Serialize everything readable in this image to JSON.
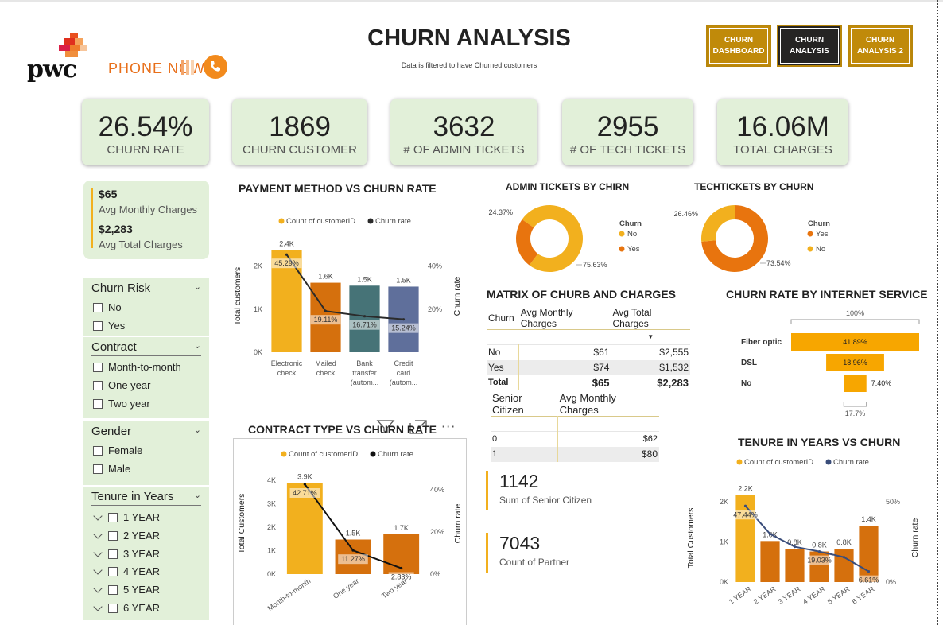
{
  "colors": {
    "gold": "#f2b01e",
    "orange": "#d5700d",
    "teal": "#467377",
    "slate": "#5f6f9b",
    "kpi_bg": "#e2f0d9",
    "nav_gold": "#c08a0a",
    "nav_dark": "#252423"
  },
  "branding": {
    "pwc": "pwc",
    "phone": "PHONE NOW"
  },
  "header": {
    "title": "CHURN ANALYSIS",
    "subtitle": "Data is filtered to have Churned customers"
  },
  "nav": [
    {
      "line1": "CHURN",
      "line2": "DASHBOARD",
      "active": false
    },
    {
      "line1": "CHURN",
      "line2": "ANALYSIS",
      "active": true
    },
    {
      "line1": "CHURN",
      "line2": "ANALYSIS 2",
      "active": false
    }
  ],
  "kpis": [
    {
      "value": "26.54%",
      "label": "CHURN RATE"
    },
    {
      "value": "1869",
      "label": "CHURN CUSTOMER"
    },
    {
      "value": "3632",
      "label": "# OF ADMIN TICKETS"
    },
    {
      "value": "2955",
      "label": "# OF TECH TICKETS"
    },
    {
      "value": "16.06M",
      "label": "TOTAL CHARGES"
    }
  ],
  "avg_card": {
    "v1": "$65",
    "l1": "Avg Monthly Charges",
    "v2": "$2,283",
    "l2": "Avg Total Charges"
  },
  "slicers": {
    "churn_risk": {
      "title": "Churn Risk",
      "options": [
        "No",
        "Yes"
      ]
    },
    "contract": {
      "title": "Contract",
      "options": [
        "Month-to-month",
        "One year",
        "Two year"
      ]
    },
    "gender": {
      "title": "Gender",
      "options": [
        "Female",
        "Male"
      ]
    },
    "tenure": {
      "title": "Tenure in Years",
      "options": [
        "1 YEAR",
        "2 YEAR",
        "3 YEAR",
        "4 YEAR",
        "5 YEAR",
        "6 YEAR"
      ]
    }
  },
  "matrix": {
    "title": "MATRIX OF CHURB AND CHARGES",
    "headers": [
      "Churn",
      "Avg Monthly Charges",
      "Avg Total Charges"
    ],
    "rows": [
      {
        "c": "No",
        "m": "$61",
        "t": "$2,555"
      },
      {
        "c": "Yes",
        "m": "$74",
        "t": "$1,532"
      },
      {
        "c": "Total",
        "m": "$65",
        "t": "$2,283"
      }
    ]
  },
  "senior_table": {
    "headers": [
      "Senior Citizen",
      "Avg Monthly Charges"
    ],
    "rows": [
      {
        "s": "0",
        "m": "$62"
      },
      {
        "s": "1",
        "m": "$80"
      }
    ]
  },
  "stats": [
    {
      "value": "1142",
      "label": "Sum of Senior Citizen"
    },
    {
      "value": "7043",
      "label": "Count of Partner"
    }
  ],
  "chart_data": [
    {
      "id": "payment",
      "type": "bar",
      "title": "PAYMENT METHOD VS CHURN RATE",
      "legend": [
        "Count of customerID",
        "Churn rate"
      ],
      "ylabel": "Total customers",
      "y2label": "Churn rate",
      "yticks": [
        "0K",
        "1K",
        "2K"
      ],
      "y2ticks": [
        "20%",
        "40%"
      ],
      "ylim": [
        0,
        2600
      ],
      "y2lim": [
        0,
        0.52
      ],
      "categories": [
        [
          "Electronic",
          "check"
        ],
        [
          "Mailed",
          "check"
        ],
        [
          "Bank",
          "transfer",
          "(autom..."
        ],
        [
          "Credit",
          "card",
          "(autom..."
        ]
      ],
      "values": [
        2365,
        1612,
        1544,
        1522
      ],
      "value_labels": [
        "2.4K",
        "1.6K",
        "1.5K",
        "1.5K"
      ],
      "rates": [
        0.4529,
        0.1911,
        0.1671,
        0.1524
      ],
      "rate_labels": [
        "45.29%",
        "19.11%",
        "16.71%",
        "15.24%"
      ],
      "bar_colors": [
        "#f2b01e",
        "#d5700d",
        "#467377",
        "#5f6f9b"
      ]
    },
    {
      "id": "contract",
      "type": "bar",
      "title": "CONTRACT TYPE VS CHURN RATE",
      "legend": [
        "Count of customerID",
        "Churn rate"
      ],
      "ylabel": "Total Customers",
      "y2label": "Churn rate",
      "yticks": [
        "0K",
        "1K",
        "2K",
        "3K",
        "4K"
      ],
      "y2ticks": [
        "0%",
        "20%",
        "40%"
      ],
      "ylim": [
        0,
        4300
      ],
      "y2lim": [
        0,
        0.48
      ],
      "categories": [
        "Month-to-month",
        "One year",
        "Two year"
      ],
      "values": [
        3875,
        1473,
        1695
      ],
      "value_labels": [
        "3.9K",
        "1.5K",
        "1.7K"
      ],
      "rates": [
        0.4271,
        0.1127,
        0.0283
      ],
      "rate_labels": [
        "42.71%",
        "11.27%",
        "2.83%"
      ],
      "bar_colors": [
        "#f2b01e",
        "#d5700d",
        "#d5700d"
      ]
    },
    {
      "id": "tenure",
      "type": "bar",
      "title": "TENURE IN YEARS VS CHURN",
      "legend": [
        "Count of customerID",
        "Churn rate"
      ],
      "ylabel": "Total Customers",
      "y2label": "Churn rate",
      "yticks": [
        "0K",
        "1K",
        "2K"
      ],
      "y2ticks": [
        "0%",
        "50%"
      ],
      "ylim": [
        0,
        2200
      ],
      "y2lim": [
        0,
        0.55
      ],
      "categories": [
        "1 YEAR",
        "2 YEAR",
        "3 YEAR",
        "4 YEAR",
        "5 YEAR",
        "6 YEAR"
      ],
      "values": [
        2175,
        1024,
        832,
        762,
        832,
        1407
      ],
      "value_labels": [
        "2.2K",
        "1.0K",
        "0.8K",
        "0.8K",
        "0.8K",
        "1.4K"
      ],
      "rates": [
        0.4744,
        0.3,
        0.22,
        0.1903,
        0.155,
        0.0661
      ],
      "rate_labels": [
        "47.44%",
        "",
        "",
        "19.03%",
        "",
        "6.61%"
      ],
      "bar_colors": [
        "#f2b01e",
        "#d5700d",
        "#d5700d",
        "#d5700d",
        "#d5700d",
        "#d5700d"
      ]
    },
    {
      "id": "admin",
      "type": "pie",
      "title": "ADMIN TICKETS BY CHIRN",
      "legend_title": "Churn",
      "slices": [
        {
          "name": "No",
          "value": 75.63,
          "label": "75.63%",
          "color": "#f2b01e"
        },
        {
          "name": "Yes",
          "value": 24.37,
          "label": "24.37%",
          "color": "#e8740e"
        }
      ]
    },
    {
      "id": "tech",
      "type": "pie",
      "title": "TECHTICKETS BY CHURN",
      "legend_title": "Churn",
      "slices": [
        {
          "name": "Yes",
          "value": 73.54,
          "label": "73.54%",
          "color": "#e8740e"
        },
        {
          "name": "No",
          "value": 26.46,
          "label": "26.46%",
          "color": "#f2b01e"
        }
      ]
    },
    {
      "id": "internet",
      "type": "bar",
      "title": "CHURN RATE BY INTERNET SERVICE",
      "top_label": "100%",
      "bottom_label": "17.7%",
      "categories": [
        "Fiber optic",
        "DSL",
        "No"
      ],
      "values": [
        41.89,
        18.96,
        7.4
      ],
      "value_labels": [
        "41.89%",
        "18.96%",
        "7.40%"
      ],
      "color": "#f7a600"
    }
  ]
}
